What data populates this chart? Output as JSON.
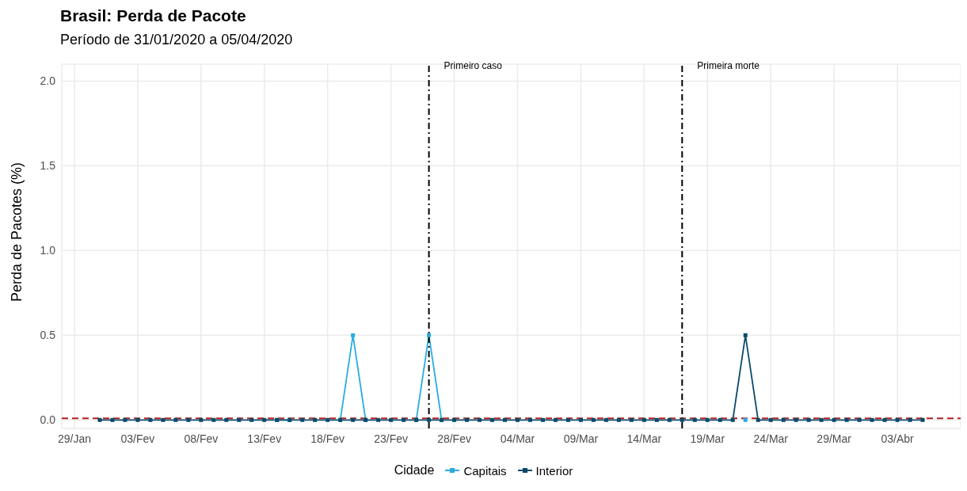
{
  "chart_data": {
    "type": "line",
    "title": "Brasil: Perda de Pacote",
    "subtitle": "Período de 31/01/2020 a 05/04/2020",
    "ylabel": "Perda de Pacotes (%)",
    "legend_title": "Cidade",
    "legend": "bottom",
    "grid": true,
    "marker": "square",
    "line_style": "solid",
    "x": [
      "2020-01-31",
      "2020-02-01",
      "2020-02-02",
      "2020-02-03",
      "2020-02-04",
      "2020-02-05",
      "2020-02-06",
      "2020-02-07",
      "2020-02-08",
      "2020-02-09",
      "2020-02-10",
      "2020-02-11",
      "2020-02-12",
      "2020-02-13",
      "2020-02-14",
      "2020-02-15",
      "2020-02-16",
      "2020-02-17",
      "2020-02-18",
      "2020-02-19",
      "2020-02-20",
      "2020-02-21",
      "2020-02-22",
      "2020-02-23",
      "2020-02-24",
      "2020-02-25",
      "2020-02-26",
      "2020-02-27",
      "2020-02-28",
      "2020-02-29",
      "2020-03-01",
      "2020-03-02",
      "2020-03-03",
      "2020-03-04",
      "2020-03-05",
      "2020-03-06",
      "2020-03-07",
      "2020-03-08",
      "2020-03-09",
      "2020-03-10",
      "2020-03-11",
      "2020-03-12",
      "2020-03-13",
      "2020-03-14",
      "2020-03-15",
      "2020-03-16",
      "2020-03-17",
      "2020-03-18",
      "2020-03-19",
      "2020-03-20",
      "2020-03-21",
      "2020-03-22",
      "2020-03-23",
      "2020-03-24",
      "2020-03-25",
      "2020-03-26",
      "2020-03-27",
      "2020-03-28",
      "2020-03-29",
      "2020-03-30",
      "2020-03-31",
      "2020-04-01",
      "2020-04-02",
      "2020-04-03",
      "2020-04-04",
      "2020-04-05"
    ],
    "series": [
      {
        "name": "Capitais",
        "color": "#29abe2",
        "values": [
          null,
          null,
          null,
          null,
          null,
          null,
          null,
          null,
          null,
          null,
          null,
          null,
          null,
          null,
          0,
          0,
          null,
          null,
          null,
          0,
          0.5,
          0,
          null,
          null,
          null,
          0,
          0.5,
          0,
          null,
          null,
          null,
          null,
          null,
          null,
          null,
          null,
          null,
          null,
          null,
          null,
          null,
          null,
          null,
          null,
          null,
          null,
          null,
          null,
          null,
          null,
          null,
          0,
          null,
          null,
          null,
          null,
          null,
          null,
          null,
          null,
          null,
          null,
          null,
          null,
          null,
          null
        ]
      },
      {
        "name": "Interior",
        "color": "#0b4a6b",
        "values": [
          0,
          0,
          0,
          0,
          0,
          0,
          0,
          0,
          0,
          0,
          0,
          0,
          0,
          0,
          0,
          0,
          0,
          0,
          0,
          0,
          0,
          0,
          0,
          0,
          0,
          0,
          0,
          0,
          0,
          0,
          0,
          0,
          0,
          0,
          0,
          0,
          0,
          0,
          0,
          0,
          0,
          0,
          0,
          0,
          0,
          0,
          0,
          0,
          0,
          0,
          0,
          0.5,
          0,
          0,
          0,
          0,
          0,
          0,
          0,
          0,
          0,
          0,
          0,
          0,
          0,
          0
        ]
      }
    ],
    "xlim": [
      "2020-01-28",
      "2020-04-08"
    ],
    "xticks": [
      {
        "value": "2020-01-29",
        "label": "29/Jan"
      },
      {
        "value": "2020-02-03",
        "label": "03/Fev"
      },
      {
        "value": "2020-02-08",
        "label": "08/Fev"
      },
      {
        "value": "2020-02-13",
        "label": "13/Fev"
      },
      {
        "value": "2020-02-18",
        "label": "18/Fev"
      },
      {
        "value": "2020-02-23",
        "label": "23/Fev"
      },
      {
        "value": "2020-02-28",
        "label": "28/Fev"
      },
      {
        "value": "2020-03-04",
        "label": "04/Mar"
      },
      {
        "value": "2020-03-09",
        "label": "09/Mar"
      },
      {
        "value": "2020-03-14",
        "label": "14/Mar"
      },
      {
        "value": "2020-03-19",
        "label": "19/Mar"
      },
      {
        "value": "2020-03-24",
        "label": "24/Mar"
      },
      {
        "value": "2020-03-29",
        "label": "29/Mar"
      },
      {
        "value": "2020-04-03",
        "label": "03/Abr"
      }
    ],
    "ylim": [
      -0.05,
      2.1
    ],
    "yticks": [
      {
        "value": 0,
        "label": "0.0"
      },
      {
        "value": 0.5,
        "label": "0.5"
      },
      {
        "value": 1,
        "label": "1.0"
      },
      {
        "value": 1.5,
        "label": "1.5"
      },
      {
        "value": 2,
        "label": "2.0"
      }
    ],
    "ref_lines": [
      {
        "axis": "y",
        "value": 0.01,
        "label": null,
        "color": "#b22222",
        "line_style": "dashed"
      },
      {
        "axis": "x",
        "value": "2020-02-26",
        "label": "Primeiro caso",
        "color": "#000000",
        "line_style": "dashdot"
      },
      {
        "axis": "x",
        "value": "2020-03-17",
        "label": "Primeira morte",
        "color": "#000000",
        "line_style": "dashdot"
      }
    ]
  }
}
